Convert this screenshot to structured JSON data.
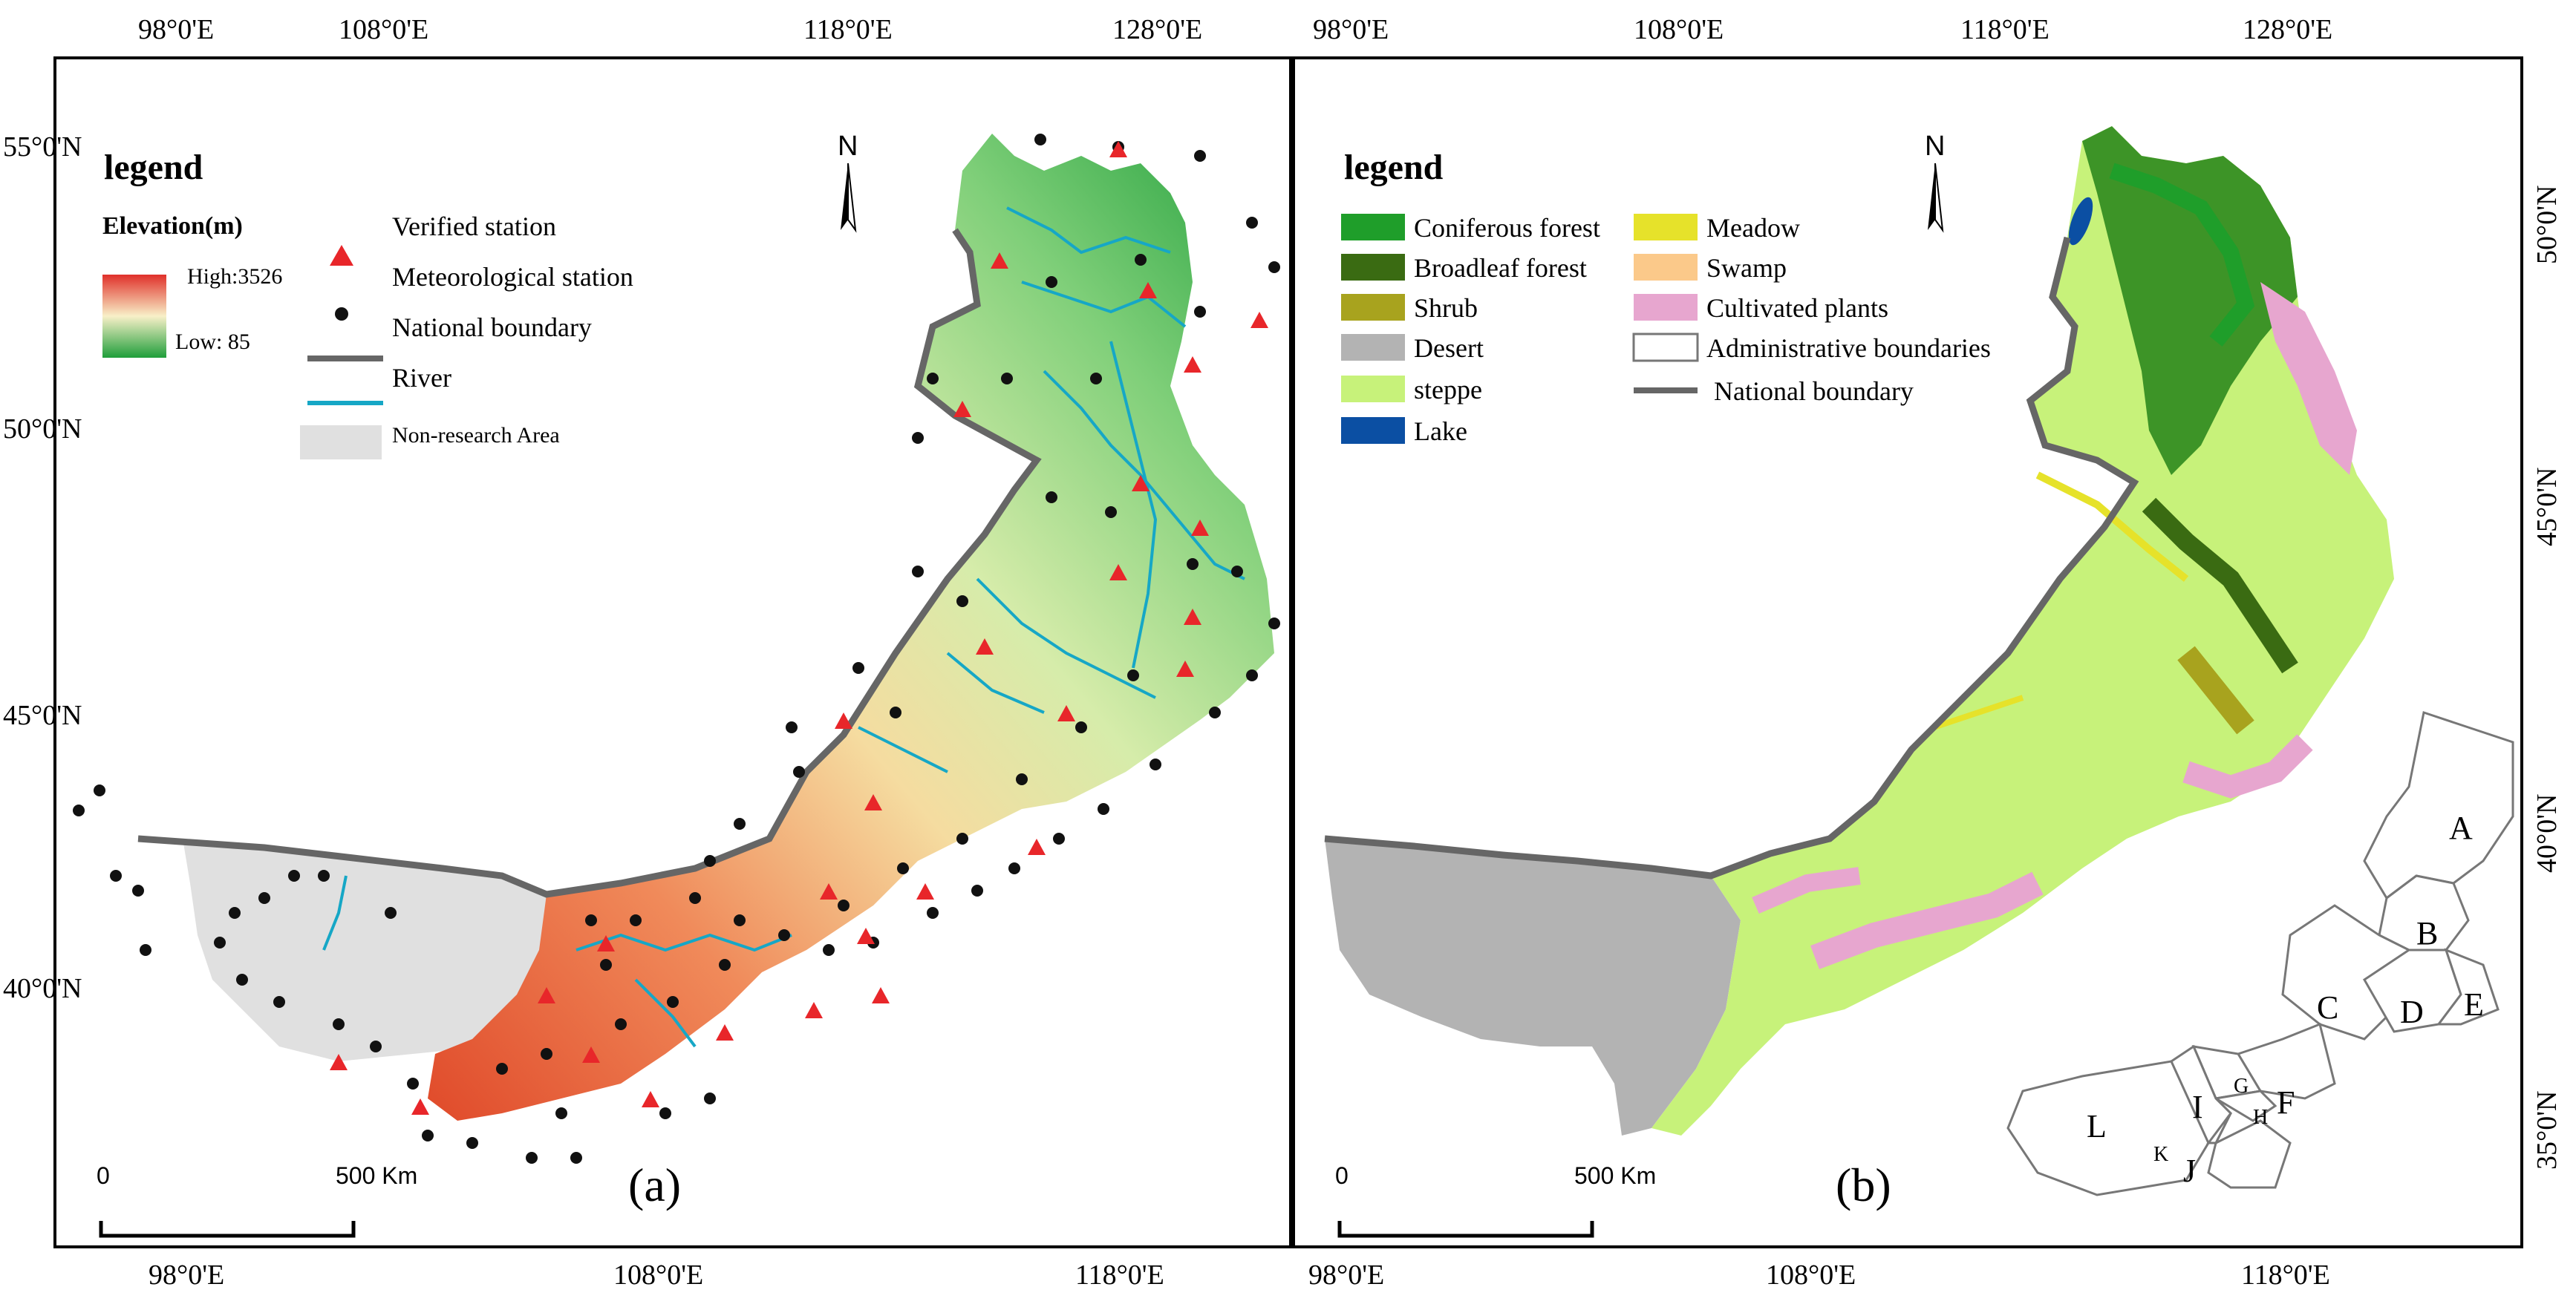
{
  "top_lon_labels": [
    "98°0'E",
    "108°0'E",
    "118°0'E",
    "128°0'E"
  ],
  "top_lon_labels_b": [
    "98°0'E",
    "108°0'E",
    "118°0'E",
    "128°0'E"
  ],
  "panel_a": {
    "lat_labels": [
      "55°0'N",
      "50°0'N",
      "45°0'N",
      "40°0'N"
    ],
    "bottom_lon_labels": [
      "98°0'E",
      "108°0'E",
      "118°0'E"
    ],
    "legend_title": "legend",
    "elevation_title": "Elevation(m)",
    "elevation_high": "High:3526",
    "elevation_low": "Low: 85",
    "legend_items": {
      "verified": "Verified station",
      "meteorological": "Meteorological station",
      "national_boundary": "National boundary",
      "river": "River",
      "non_research": "Non-research Area"
    },
    "north": "N",
    "scale_zero": "0",
    "scale_label": "500 Km",
    "panel_label": "(a)"
  },
  "panel_b": {
    "lat_labels": [
      "50°0'N",
      "45°0'N",
      "40°0'N",
      "35°0'N"
    ],
    "bottom_lon_labels": [
      "98°0'E",
      "108°0'E",
      "118°0'E"
    ],
    "legend_title": "legend",
    "legend_items": {
      "coniferous": "Coniferous forest",
      "broadleaf": "Broadleaf forest",
      "shrub": "Shrub",
      "desert": "Desert",
      "steppe": "steppe",
      "lake": "Lake",
      "meadow": "Meadow",
      "swamp": "Swamp",
      "cultivated": "Cultivated plants",
      "admin": "Administrative boundaries",
      "national_boundary": "National boundary"
    },
    "north": "N",
    "scale_zero": "0",
    "scale_label": "500 Km",
    "panel_label": "(b)",
    "regions": [
      "A",
      "B",
      "C",
      "D",
      "E",
      "F",
      "G",
      "H",
      "I",
      "J",
      "K",
      "L"
    ]
  },
  "colors": {
    "coniferous": "#1f9e2a",
    "broadleaf": "#3a6b12",
    "shrub": "#a8a31e",
    "desert": "#b3b3b3",
    "steppe": "#c7f27a",
    "lake": "#0b4fa3",
    "meadow": "#e6e22a",
    "swamp": "#fbc98a",
    "cultivated": "#e7a6cf",
    "river": "#16a7c6",
    "verified": "#e8262a",
    "non_research": "#e0e0e0"
  }
}
